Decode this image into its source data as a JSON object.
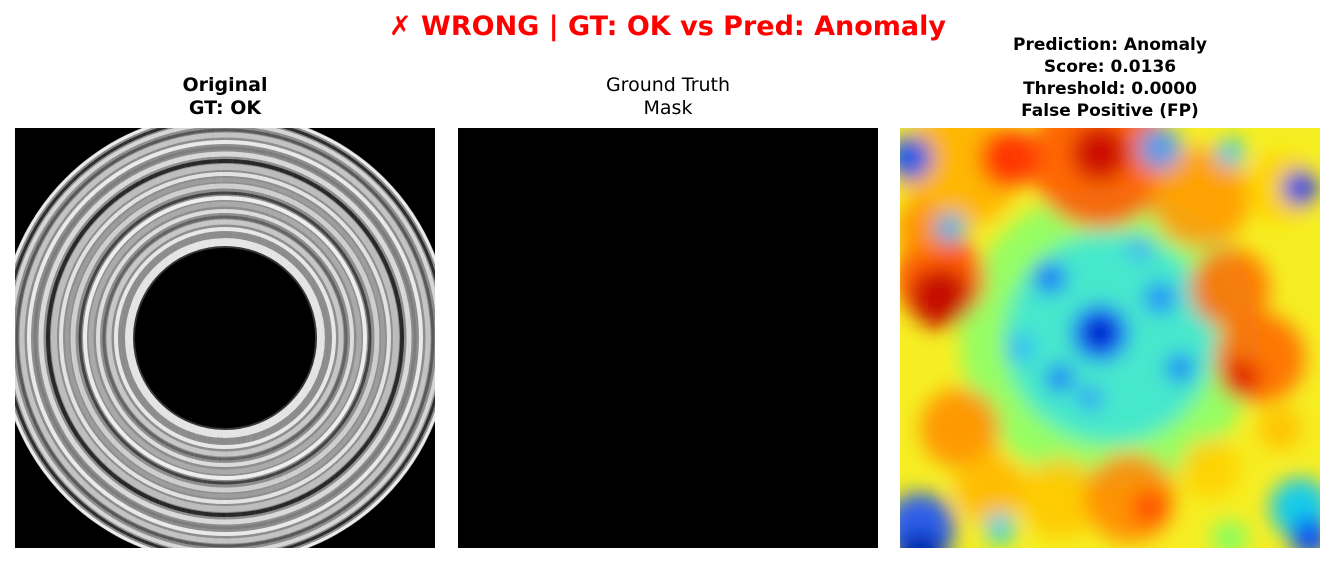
{
  "header": {
    "verdict_mark": "✗",
    "verdict_text": "WRONG | GT: OK vs Pred: Anomaly",
    "color": "#ff0000"
  },
  "panels": [
    {
      "title_lines": [
        "Original",
        "GT: OK"
      ],
      "content": "grayscale bearing ring image"
    },
    {
      "title_lines": [
        "Ground Truth",
        "Mask"
      ],
      "content": "all-black mask"
    },
    {
      "title_lines": [
        "Prediction: Anomaly",
        "Score: 0.0136",
        "Threshold: 0.0000",
        "False Positive (FP)"
      ],
      "content": "jet colormap anomaly heatmap"
    }
  ]
}
